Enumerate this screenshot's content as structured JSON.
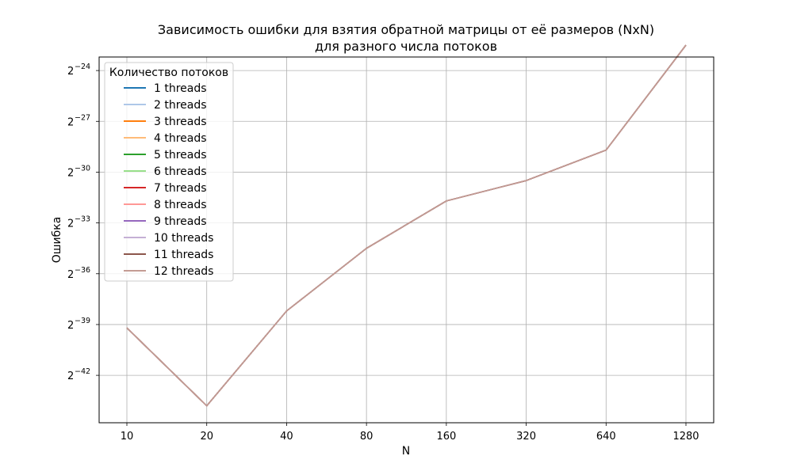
{
  "chart_data": {
    "type": "line",
    "title": "Зависимость ошибки для взятия обратной матрицы от её размеров (NxN)",
    "subtitle": "для разного числа потоков",
    "xlabel": "N",
    "ylabel": "Ошибка",
    "categories": [
      "10",
      "20",
      "40",
      "80",
      "160",
      "320",
      "640",
      "1280"
    ],
    "y_scale": "log2",
    "ylim_exp": [
      -44.8,
      -23.2
    ],
    "y_ticks": [
      {
        "base": "2",
        "exp": "−24",
        "value_exp": -24
      },
      {
        "base": "2",
        "exp": "−27",
        "value_exp": -27
      },
      {
        "base": "2",
        "exp": "−30",
        "value_exp": -30
      },
      {
        "base": "2",
        "exp": "−33",
        "value_exp": -33
      },
      {
        "base": "2",
        "exp": "−36",
        "value_exp": -36
      },
      {
        "base": "2",
        "exp": "−39",
        "value_exp": -39
      },
      {
        "base": "2",
        "exp": "−42",
        "value_exp": -42
      }
    ],
    "grid": true,
    "legend": {
      "title": "Количество потоков",
      "placement": "upper-left"
    },
    "series": [
      {
        "name": "1 threads",
        "color": "#1f77b4",
        "log2_values": [
          -39.2,
          -43.8,
          -38.2,
          -34.5,
          -31.7,
          -30.5,
          -28.7,
          -22.5
        ]
      },
      {
        "name": "2 threads",
        "color": "#aec7e8",
        "log2_values": [
          -39.2,
          -43.8,
          -38.2,
          -34.5,
          -31.7,
          -30.5,
          -28.7,
          -22.5
        ]
      },
      {
        "name": "3 threads",
        "color": "#ff7f0e",
        "log2_values": [
          -39.2,
          -43.8,
          -38.2,
          -34.5,
          -31.7,
          -30.5,
          -28.7,
          -22.5
        ]
      },
      {
        "name": "4 threads",
        "color": "#ffbb78",
        "log2_values": [
          -39.2,
          -43.8,
          -38.2,
          -34.5,
          -31.7,
          -30.5,
          -28.7,
          -22.5
        ]
      },
      {
        "name": "5 threads",
        "color": "#2ca02c",
        "log2_values": [
          -39.2,
          -43.8,
          -38.2,
          -34.5,
          -31.7,
          -30.5,
          -28.7,
          -22.5
        ]
      },
      {
        "name": "6 threads",
        "color": "#98df8a",
        "log2_values": [
          -39.2,
          -43.8,
          -38.2,
          -34.5,
          -31.7,
          -30.5,
          -28.7,
          -22.5
        ]
      },
      {
        "name": "7 threads",
        "color": "#d62728",
        "log2_values": [
          -39.2,
          -43.8,
          -38.2,
          -34.5,
          -31.7,
          -30.5,
          -28.7,
          -22.5
        ]
      },
      {
        "name": "8 threads",
        "color": "#ff9896",
        "log2_values": [
          -39.2,
          -43.8,
          -38.2,
          -34.5,
          -31.7,
          -30.5,
          -28.7,
          -22.5
        ]
      },
      {
        "name": "9 threads",
        "color": "#9467bd",
        "log2_values": [
          -39.2,
          -43.8,
          -38.2,
          -34.5,
          -31.7,
          -30.5,
          -28.7,
          -22.5
        ]
      },
      {
        "name": "10 threads",
        "color": "#c5b0d5",
        "log2_values": [
          -39.2,
          -43.8,
          -38.2,
          -34.5,
          -31.7,
          -30.5,
          -28.7,
          -22.5
        ]
      },
      {
        "name": "11 threads",
        "color": "#8c564b",
        "log2_values": [
          -39.2,
          -43.8,
          -38.2,
          -34.5,
          -31.7,
          -30.5,
          -28.7,
          -22.5
        ]
      },
      {
        "name": "12 threads",
        "color": "#c49c94",
        "log2_values": [
          -39.2,
          -43.8,
          -38.2,
          -34.5,
          -31.7,
          -30.5,
          -28.7,
          -22.5
        ]
      }
    ]
  }
}
